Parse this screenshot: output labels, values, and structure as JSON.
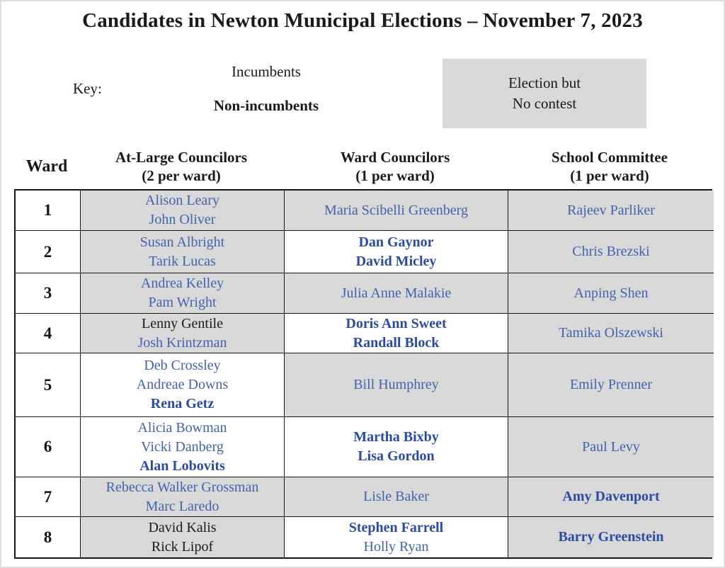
{
  "title": "Candidates in Newton Municipal Elections – November 7, 2023",
  "key": {
    "label": "Key:",
    "incumbents": "Incumbents",
    "non_incumbents": "Non-incumbents",
    "no_contest_line1": "Election but",
    "no_contest_line2": "No contest"
  },
  "colors": {
    "incumbent_link_blue": "#4263ad",
    "non_incumbent_blue": "#2b4aa3",
    "no_contest_gray": "#d9d9d9",
    "text_black": "#1a1a1a"
  },
  "table": {
    "columns": [
      {
        "label": "Ward",
        "sub": ""
      },
      {
        "label": "At-Large Councilors",
        "sub": "(2 per ward)"
      },
      {
        "label": "Ward Councilors",
        "sub": "(1 per ward)"
      },
      {
        "label": "School Committee",
        "sub": "(1 per ward)"
      }
    ],
    "rows": [
      {
        "ward": "1",
        "at_large": {
          "no_contest": true,
          "candidates": [
            {
              "name": "Alison Leary",
              "type": "incumbent",
              "linked": true
            },
            {
              "name": "John Oliver",
              "type": "incumbent",
              "linked": true
            }
          ]
        },
        "ward_councilors": {
          "no_contest": true,
          "candidates": [
            {
              "name": "Maria Scibelli Greenberg",
              "type": "incumbent",
              "linked": true
            }
          ]
        },
        "school_committee": {
          "no_contest": true,
          "candidates": [
            {
              "name": "Rajeev Parliker",
              "type": "incumbent",
              "linked": true
            }
          ]
        }
      },
      {
        "ward": "2",
        "at_large": {
          "no_contest": true,
          "candidates": [
            {
              "name": "Susan Albright",
              "type": "incumbent",
              "linked": true
            },
            {
              "name": "Tarik Lucas",
              "type": "incumbent",
              "linked": true
            }
          ]
        },
        "ward_councilors": {
          "no_contest": false,
          "candidates": [
            {
              "name": "Dan Gaynor",
              "type": "non-incumbent",
              "linked": true
            },
            {
              "name": "David Micley",
              "type": "non-incumbent",
              "linked": true
            }
          ]
        },
        "school_committee": {
          "no_contest": true,
          "candidates": [
            {
              "name": "Chris Brezski",
              "type": "incumbent",
              "linked": true
            }
          ]
        }
      },
      {
        "ward": "3",
        "at_large": {
          "no_contest": true,
          "candidates": [
            {
              "name": "Andrea Kelley",
              "type": "incumbent",
              "linked": true
            },
            {
              "name": "Pam Wright",
              "type": "incumbent",
              "linked": true
            }
          ]
        },
        "ward_councilors": {
          "no_contest": true,
          "candidates": [
            {
              "name": "Julia Anne Malakie",
              "type": "incumbent",
              "linked": true
            }
          ]
        },
        "school_committee": {
          "no_contest": true,
          "candidates": [
            {
              "name": "Anping Shen",
              "type": "incumbent",
              "linked": true
            }
          ]
        }
      },
      {
        "ward": "4",
        "at_large": {
          "no_contest": true,
          "candidates": [
            {
              "name": "Lenny Gentile",
              "type": "incumbent",
              "linked": false
            },
            {
              "name": "Josh Krintzman",
              "type": "incumbent",
              "linked": true
            }
          ]
        },
        "ward_councilors": {
          "no_contest": false,
          "candidates": [
            {
              "name": "Doris Ann Sweet",
              "type": "non-incumbent",
              "linked": true
            },
            {
              "name": "Randall Block",
              "type": "non-incumbent",
              "linked": true
            }
          ]
        },
        "school_committee": {
          "no_contest": true,
          "candidates": [
            {
              "name": "Tamika Olszewski",
              "type": "incumbent",
              "linked": true
            }
          ]
        }
      },
      {
        "ward": "5",
        "at_large": {
          "no_contest": false,
          "candidates": [
            {
              "name": "Deb Crossley",
              "type": "incumbent",
              "linked": true
            },
            {
              "name": "Andreae Downs",
              "type": "incumbent",
              "linked": true
            },
            {
              "name": "Rena Getz",
              "type": "non-incumbent",
              "linked": true
            }
          ]
        },
        "ward_councilors": {
          "no_contest": true,
          "candidates": [
            {
              "name": "Bill Humphrey",
              "type": "incumbent",
              "linked": true
            }
          ]
        },
        "school_committee": {
          "no_contest": true,
          "candidates": [
            {
              "name": "Emily Prenner",
              "type": "incumbent",
              "linked": true
            }
          ]
        }
      },
      {
        "ward": "6",
        "at_large": {
          "no_contest": false,
          "candidates": [
            {
              "name": "Alicia Bowman",
              "type": "incumbent",
              "linked": true
            },
            {
              "name": "Vicki Danberg",
              "type": "incumbent",
              "linked": true
            },
            {
              "name": "Alan Lobovits",
              "type": "non-incumbent",
              "linked": true
            }
          ]
        },
        "ward_councilors": {
          "no_contest": false,
          "candidates": [
            {
              "name": "Martha Bixby",
              "type": "non-incumbent",
              "linked": true
            },
            {
              "name": "Lisa Gordon",
              "type": "non-incumbent",
              "linked": true
            }
          ]
        },
        "school_committee": {
          "no_contest": true,
          "candidates": [
            {
              "name": "Paul Levy",
              "type": "incumbent",
              "linked": true
            }
          ]
        }
      },
      {
        "ward": "7",
        "at_large": {
          "no_contest": true,
          "candidates": [
            {
              "name": "Rebecca Walker Grossman",
              "type": "incumbent",
              "linked": true
            },
            {
              "name": "Marc Laredo",
              "type": "incumbent",
              "linked": true
            }
          ]
        },
        "ward_councilors": {
          "no_contest": true,
          "candidates": [
            {
              "name": "Lisle Baker",
              "type": "incumbent",
              "linked": true
            }
          ]
        },
        "school_committee": {
          "no_contest": true,
          "candidates": [
            {
              "name": "Amy Davenport",
              "type": "non-incumbent",
              "linked": true
            }
          ]
        }
      },
      {
        "ward": "8",
        "at_large": {
          "no_contest": true,
          "candidates": [
            {
              "name": "David Kalis",
              "type": "incumbent",
              "linked": false
            },
            {
              "name": "Rick Lipof",
              "type": "incumbent",
              "linked": false
            }
          ]
        },
        "ward_councilors": {
          "no_contest": false,
          "candidates": [
            {
              "name": "Stephen Farrell",
              "type": "non-incumbent",
              "linked": true
            },
            {
              "name": "Holly Ryan",
              "type": "incumbent",
              "linked": true
            }
          ]
        },
        "school_committee": {
          "no_contest": true,
          "candidates": [
            {
              "name": "Barry Greenstein",
              "type": "non-incumbent",
              "linked": true
            }
          ]
        }
      }
    ]
  }
}
